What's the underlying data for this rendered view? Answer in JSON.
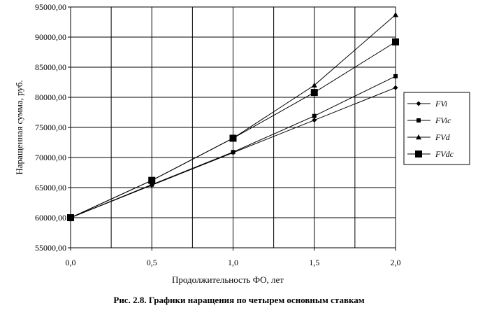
{
  "caption": "Рис. 2.8. Графики наращения по четырем основным ставкам",
  "chart_data": {
    "type": "line",
    "xlabel": "Продолжительность ФО, лет",
    "ylabel": "Наращенная сумма, руб.",
    "xlim": [
      0,
      2
    ],
    "ylim": [
      55000,
      95000
    ],
    "x_ticks": [
      "0,0",
      "0,5",
      "1,0",
      "1,5",
      "2,0"
    ],
    "x_tick_values": [
      0,
      0.5,
      1,
      1.5,
      2
    ],
    "x_minor_gridlines": [
      0.25,
      0.75,
      1.25,
      1.75
    ],
    "y_ticks": [
      "55000,00",
      "60000,00",
      "65000,00",
      "70000,00",
      "75000,00",
      "80000,00",
      "85000,00",
      "90000,00",
      "95000,00"
    ],
    "y_tick_values": [
      55000,
      60000,
      65000,
      70000,
      75000,
      80000,
      85000,
      90000,
      95000
    ],
    "grid": true,
    "legend_position": "right",
    "x": [
      0,
      0.5,
      1,
      1.5,
      2
    ],
    "series": [
      {
        "name": "FVi",
        "marker": "diamond",
        "values": [
          60000,
          65400,
          70800,
          76200,
          81600
        ]
      },
      {
        "name": "FVic",
        "marker": "square-small",
        "values": [
          60000,
          65500,
          70900,
          76900,
          83500
        ]
      },
      {
        "name": "FVd",
        "marker": "triangle",
        "values": [
          60000,
          66200,
          73200,
          82000,
          93700
        ]
      },
      {
        "name": "FVdc",
        "marker": "square-large",
        "values": [
          60000,
          66200,
          73200,
          80800,
          89200
        ]
      }
    ]
  }
}
